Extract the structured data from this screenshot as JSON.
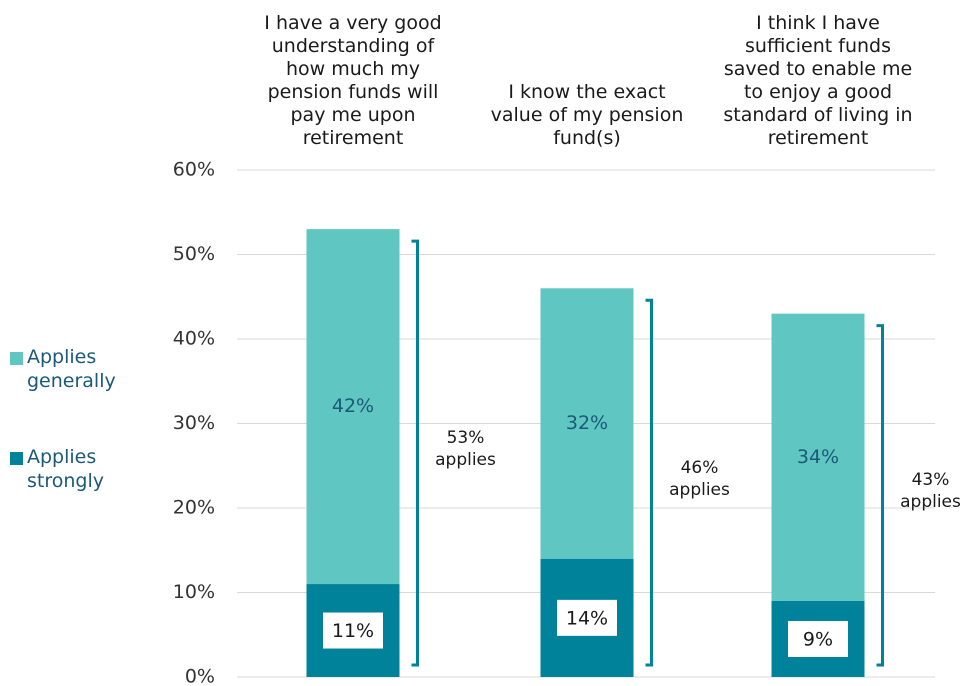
{
  "chart_data": {
    "type": "stacked_bar",
    "categories": [
      "I have a very good understanding of how much my pension funds will pay me upon retirement",
      "I know the exact value of my pension fund(s)",
      "I think I have sufficient funds saved to enable me to enjoy a good standard of living in retirement"
    ],
    "series": [
      {
        "name": "Applies strongly",
        "color": "#00829b",
        "values": [
          11,
          14,
          9
        ],
        "value_labels": [
          "11%",
          "14%",
          "9%"
        ]
      },
      {
        "name": "Applies generally",
        "color": "#5fc6c2",
        "values": [
          42,
          32,
          34
        ],
        "value_labels": [
          "42%",
          "32%",
          "34%"
        ]
      }
    ],
    "totals": {
      "values": [
        53,
        46,
        43
      ],
      "labels": [
        "53% applies",
        "46% applies",
        "43% applies"
      ],
      "color": "#00829b"
    },
    "ylim": [
      0,
      60
    ],
    "yticks": [
      {
        "value": 0,
        "label": "0%"
      },
      {
        "value": 10,
        "label": "10%"
      },
      {
        "value": 20,
        "label": "20%"
      },
      {
        "value": 30,
        "label": "30%"
      },
      {
        "value": 40,
        "label": "40%"
      },
      {
        "value": 50,
        "label": "50%"
      },
      {
        "value": 60,
        "label": "60%"
      }
    ],
    "grid": true,
    "legend": "left"
  }
}
